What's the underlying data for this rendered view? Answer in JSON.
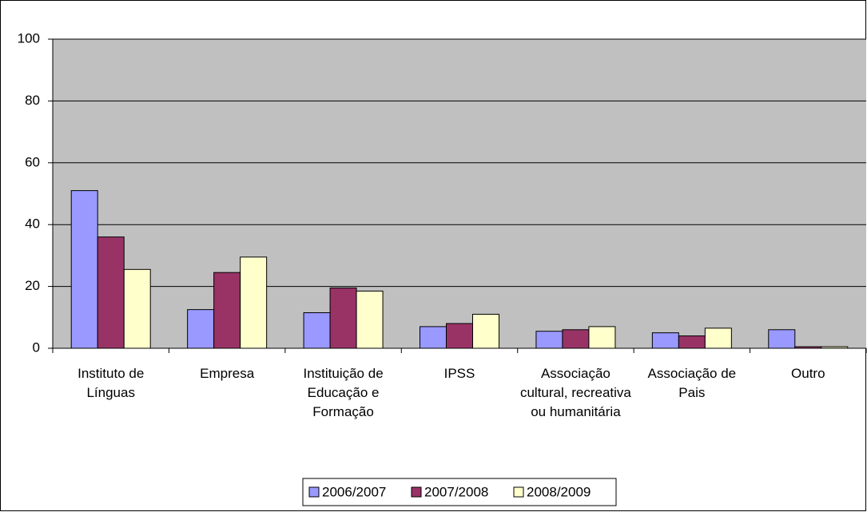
{
  "chart_data": {
    "type": "bar",
    "categories": [
      "Instituto de Línguas",
      "Empresa",
      "Instituição de Educação e Formação",
      "IPSS",
      "Associação cultural, recreativa ou humanitária",
      "Associação de Pais",
      "Outro"
    ],
    "series": [
      {
        "name": "2006/2007",
        "color": "#9999ff",
        "values": [
          51,
          12.5,
          11.5,
          7,
          5.5,
          5,
          6
        ]
      },
      {
        "name": "2007/2008",
        "color": "#993366",
        "values": [
          36,
          24.5,
          19.5,
          8,
          6,
          4,
          0.5
        ]
      },
      {
        "name": "2008/2009",
        "color": "#ffffcc",
        "values": [
          25.5,
          29.5,
          18.5,
          11,
          7,
          6.5,
          0.5
        ]
      }
    ],
    "ylim": [
      0,
      100
    ],
    "yticks": [
      0,
      20,
      40,
      60,
      80,
      100
    ],
    "grid": true,
    "legend": "bottom"
  }
}
